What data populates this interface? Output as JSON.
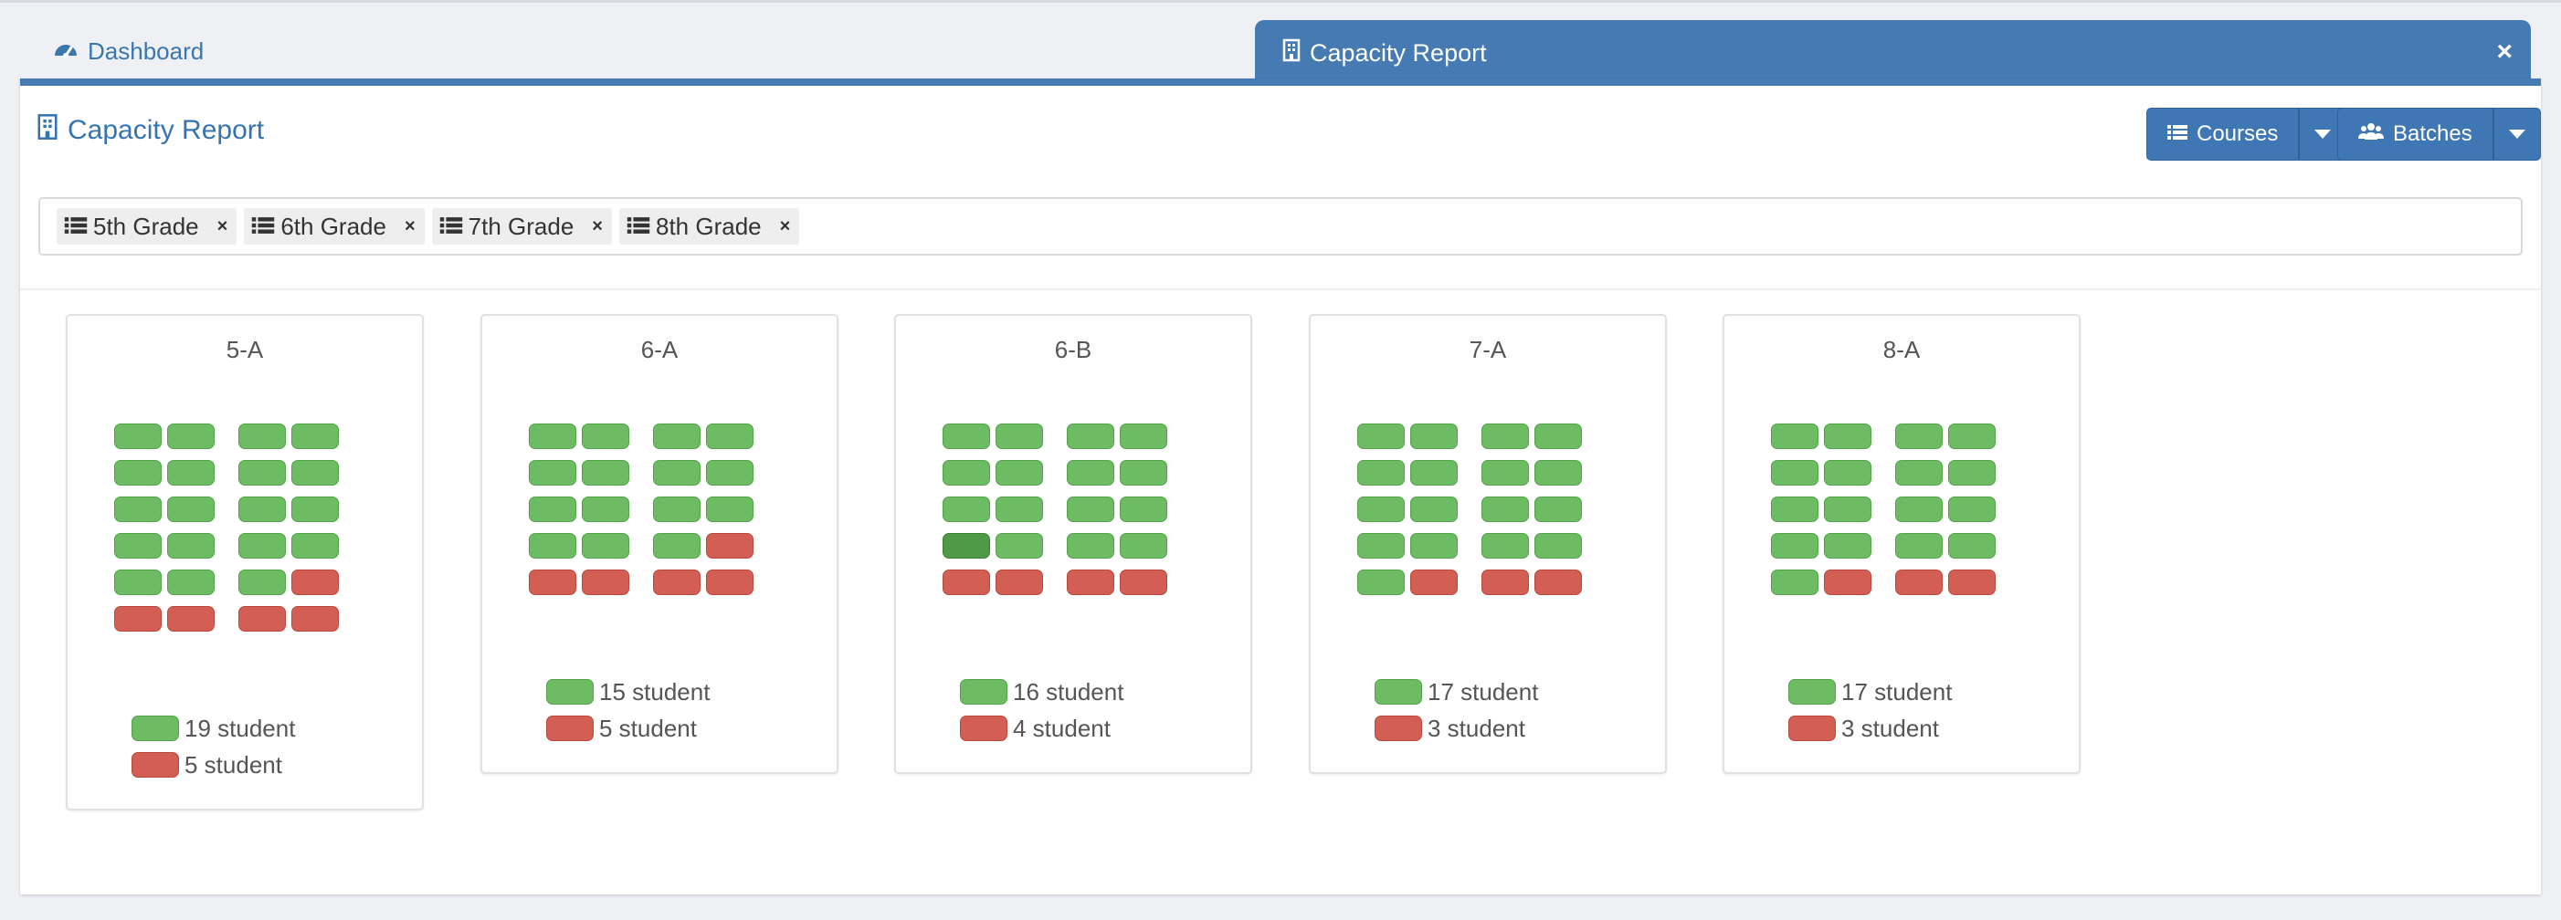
{
  "tabs": {
    "dashboard": "Dashboard",
    "active": "Capacity Report"
  },
  "panel": {
    "title": "Capacity Report",
    "courses_button": "Courses",
    "batches_button": "Batches"
  },
  "filters": [
    "5th Grade",
    "6th Grade",
    "7th Grade",
    "8th Grade"
  ],
  "colors": {
    "accent": "#467ab3",
    "seat_available": "#6dbb63",
    "seat_occupied": "#d35e53",
    "seat_highlight": "#4f9a46"
  },
  "cards": [
    {
      "title": "5-A",
      "rows": [
        [
          "g",
          "g",
          "g",
          "g"
        ],
        [
          "g",
          "g",
          "g",
          "g"
        ],
        [
          "g",
          "g",
          "g",
          "g"
        ],
        [
          "g",
          "g",
          "g",
          "g"
        ],
        [
          "g",
          "g",
          "g",
          "r"
        ],
        [
          "r",
          "r",
          "r",
          "r"
        ]
      ],
      "green_label": "19 student",
      "red_label": "5 student"
    },
    {
      "title": "6-A",
      "rows": [
        [
          "g",
          "g",
          "g",
          "g"
        ],
        [
          "g",
          "g",
          "g",
          "g"
        ],
        [
          "g",
          "g",
          "g",
          "g"
        ],
        [
          "g",
          "g",
          "g",
          "r"
        ],
        [
          "r",
          "r",
          "r",
          "r"
        ]
      ],
      "green_label": "15 student",
      "red_label": "5 student"
    },
    {
      "title": "6-B",
      "rows": [
        [
          "g",
          "g",
          "g",
          "g"
        ],
        [
          "g",
          "g",
          "g",
          "g"
        ],
        [
          "g",
          "g",
          "g",
          "g"
        ],
        [
          "dg",
          "g",
          "g",
          "g"
        ],
        [
          "r",
          "r",
          "r",
          "r"
        ]
      ],
      "green_label": "16 student",
      "red_label": "4 student"
    },
    {
      "title": "7-A",
      "rows": [
        [
          "g",
          "g",
          "g",
          "g"
        ],
        [
          "g",
          "g",
          "g",
          "g"
        ],
        [
          "g",
          "g",
          "g",
          "g"
        ],
        [
          "g",
          "g",
          "g",
          "g"
        ],
        [
          "g",
          "r",
          "r",
          "r"
        ]
      ],
      "green_label": "17 student",
      "red_label": "3 student"
    },
    {
      "title": "8-A",
      "rows": [
        [
          "g",
          "g",
          "g",
          "g"
        ],
        [
          "g",
          "g",
          "g",
          "g"
        ],
        [
          "g",
          "g",
          "g",
          "g"
        ],
        [
          "g",
          "g",
          "g",
          "g"
        ],
        [
          "g",
          "r",
          "r",
          "r"
        ]
      ],
      "green_label": "17 student",
      "red_label": "3 student"
    }
  ]
}
